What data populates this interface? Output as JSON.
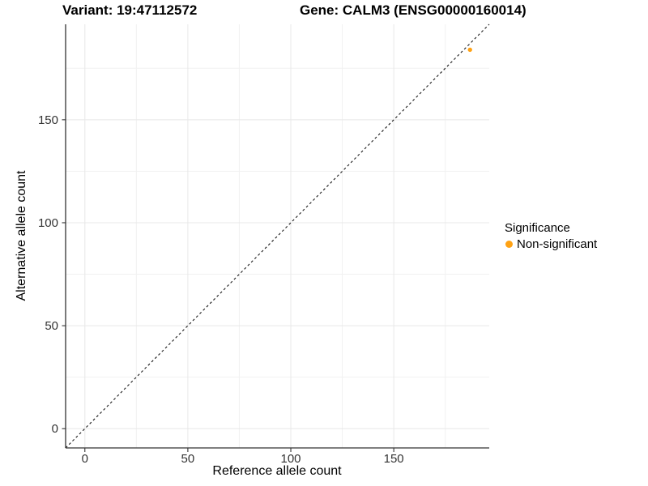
{
  "chart_data": {
    "type": "scatter",
    "title_variant": "Variant: 19:47112572",
    "title_gene": "Gene: CALM3 (ENSG00000160014)",
    "xlabel": "Reference allele count",
    "ylabel": "Alternative allele count",
    "xlim": [
      -9.35,
      196.35
    ],
    "ylim": [
      -9.35,
      196.35
    ],
    "x_ticks": [
      0,
      50,
      100,
      150
    ],
    "y_ticks": [
      0,
      50,
      100,
      150
    ],
    "x_minor_gridlines": [
      25,
      75,
      125,
      175
    ],
    "y_minor_gridlines": [
      25,
      75,
      125,
      175
    ],
    "grid": true,
    "identity_line": {
      "style": "dashed",
      "color": "#1A1A1A",
      "from": [
        -9.35,
        -9.35
      ],
      "to": [
        196.35,
        196.35
      ]
    },
    "series": [
      {
        "name": "Non-significant",
        "color": "#FFA214",
        "points": [
          {
            "x": 187,
            "y": 184
          }
        ]
      }
    ],
    "legend": {
      "title": "Significance",
      "position": "right",
      "items": [
        {
          "label": "Non-significant",
          "color": "#FFA214",
          "marker": "circle"
        }
      ]
    }
  },
  "colors": {
    "background": "#FFFFFF",
    "grid_major": "#E8E8E8",
    "grid_minor": "#F1F1F1",
    "axis_line": "#333333",
    "tick_mark": "#333333",
    "tick_label": "#333333",
    "text": "#000000"
  }
}
